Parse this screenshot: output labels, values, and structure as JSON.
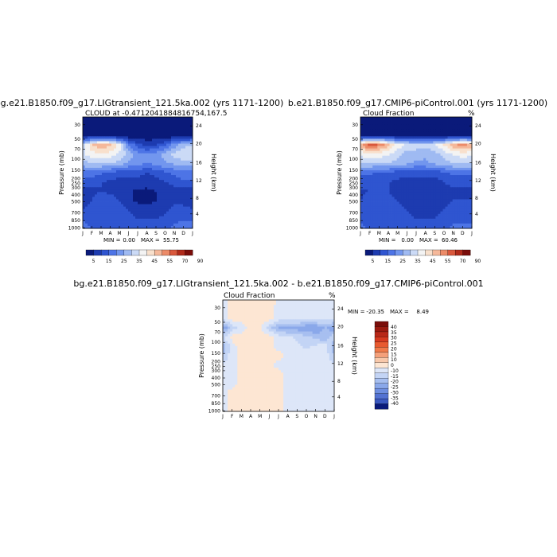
{
  "chart_data": [
    {
      "type": "heatmap",
      "title": "bg.e21.B1850.f09_g17.LIGtransient_121.5ka.002 (yrs 1171-1200)",
      "subtitle": "CLOUD at -0.4712041884816754,167.5",
      "xlabel": "",
      "ylabel": "Pressure (mb)",
      "ylabel_right": "Height (km)",
      "x_ticks": [
        "J",
        "F",
        "M",
        "A",
        "M",
        "J",
        "J",
        "A",
        "S",
        "O",
        "N",
        "D",
        "J"
      ],
      "y_ticks": [
        "30",
        "50",
        "70",
        "100",
        "150",
        "200",
        "250",
        "300",
        "400",
        "500",
        "700",
        "850",
        "1000"
      ],
      "y_ticks_right": [
        "24",
        "20",
        "16",
        "12",
        "8",
        "4"
      ],
      "stats": {
        "min_label": "MIN =",
        "min": "0.00",
        "max_label": "MAX =",
        "max": "55.75"
      },
      "colorbar": {
        "orientation": "horizontal",
        "labels": [
          "5",
          "15",
          "25",
          "35",
          "45",
          "55",
          "70",
          "90"
        ],
        "colors": [
          "#0a1a7a",
          "#1d3bb0",
          "#2f55d0",
          "#4d74e6",
          "#7296ee",
          "#9fbaf2",
          "#cbdaf6",
          "#f3f3f3",
          "#f8e0cc",
          "#f5b89a",
          "#ec8b68",
          "#d9583c",
          "#b02a1a",
          "#7a0d0a"
        ]
      },
      "field": [
        [
          0,
          0,
          0,
          0,
          0,
          0,
          0,
          0,
          0,
          0,
          0,
          0,
          0
        ],
        [
          0,
          0,
          0,
          0,
          0,
          0,
          0,
          0,
          0,
          0,
          0,
          0,
          0
        ],
        [
          2,
          2,
          2,
          2,
          1,
          1,
          1,
          1,
          1,
          1,
          1,
          1,
          2
        ],
        [
          30,
          44,
          50,
          46,
          38,
          20,
          12,
          8,
          10,
          14,
          22,
          28,
          30
        ],
        [
          34,
          38,
          40,
          38,
          34,
          28,
          22,
          20,
          22,
          28,
          32,
          34,
          34
        ],
        [
          28,
          30,
          30,
          30,
          28,
          24,
          22,
          20,
          22,
          24,
          26,
          28,
          28
        ],
        [
          18,
          18,
          16,
          14,
          12,
          12,
          12,
          10,
          12,
          14,
          16,
          18,
          18
        ],
        [
          14,
          12,
          10,
          9,
          8,
          8,
          8,
          7,
          8,
          10,
          12,
          14,
          14
        ],
        [
          8,
          9,
          10,
          9,
          8,
          6,
          4,
          4,
          5,
          6,
          8,
          8,
          8
        ],
        [
          8,
          10,
          14,
          12,
          10,
          6,
          4,
          4,
          5,
          6,
          8,
          8,
          8
        ],
        [
          10,
          12,
          14,
          14,
          12,
          10,
          8,
          6,
          6,
          8,
          12,
          12,
          10
        ],
        [
          14,
          12,
          12,
          12,
          12,
          12,
          10,
          10,
          10,
          12,
          14,
          14,
          14
        ],
        [
          18,
          14,
          12,
          12,
          14,
          14,
          12,
          12,
          12,
          14,
          16,
          18,
          18
        ]
      ]
    },
    {
      "type": "heatmap",
      "title": "b.e21.B1850.f09_g17.CMIP6-piControl.001 (yrs 1171-1200)",
      "subtitle": "Cloud Fraction",
      "corner_label": "%",
      "xlabel": "",
      "ylabel": "Pressure (mb)",
      "ylabel_right": "Height (km)",
      "x_ticks": [
        "J",
        "F",
        "M",
        "A",
        "M",
        "J",
        "J",
        "A",
        "S",
        "O",
        "N",
        "D",
        "J"
      ],
      "y_ticks": [
        "30",
        "50",
        "70",
        "100",
        "150",
        "200",
        "250",
        "300",
        "400",
        "500",
        "700",
        "850",
        "1000"
      ],
      "y_ticks_right": [
        "24",
        "20",
        "16",
        "12",
        "8",
        "4"
      ],
      "stats": {
        "min_label": "MIN =",
        "min": "0.00",
        "max_label": "MAX =",
        "max": "60.46"
      },
      "colorbar": {
        "orientation": "horizontal",
        "labels": [
          "5",
          "15",
          "25",
          "35",
          "45",
          "55",
          "70",
          "90"
        ],
        "colors": [
          "#0a1a7a",
          "#1d3bb0",
          "#2f55d0",
          "#4d74e6",
          "#7296ee",
          "#9fbaf2",
          "#cbdaf6",
          "#f3f3f3",
          "#f8e0cc",
          "#f5b89a",
          "#ec8b68",
          "#d9583c",
          "#b02a1a",
          "#7a0d0a"
        ]
      },
      "field": [
        [
          0,
          0,
          0,
          0,
          0,
          0,
          0,
          0,
          0,
          0,
          0,
          0,
          0
        ],
        [
          0,
          0,
          0,
          0,
          0,
          0,
          0,
          0,
          0,
          0,
          0,
          0,
          0
        ],
        [
          2,
          2,
          2,
          2,
          1,
          1,
          1,
          1,
          1,
          1,
          1,
          2,
          2
        ],
        [
          48,
          58,
          54,
          46,
          38,
          34,
          32,
          32,
          34,
          40,
          48,
          52,
          48
        ],
        [
          36,
          40,
          38,
          36,
          32,
          28,
          28,
          26,
          28,
          32,
          36,
          38,
          36
        ],
        [
          30,
          30,
          30,
          30,
          28,
          26,
          24,
          24,
          26,
          28,
          30,
          30,
          30
        ],
        [
          16,
          16,
          14,
          14,
          12,
          12,
          12,
          12,
          12,
          14,
          16,
          16,
          16
        ],
        [
          12,
          12,
          10,
          10,
          9,
          8,
          8,
          8,
          8,
          10,
          12,
          12,
          12
        ],
        [
          9,
          10,
          10,
          10,
          8,
          6,
          5,
          5,
          6,
          8,
          9,
          9,
          9
        ],
        [
          10,
          12,
          14,
          12,
          10,
          8,
          6,
          6,
          7,
          8,
          10,
          10,
          10
        ],
        [
          12,
          12,
          14,
          14,
          12,
          10,
          8,
          6,
          8,
          10,
          12,
          12,
          12
        ],
        [
          14,
          14,
          14,
          14,
          12,
          12,
          10,
          10,
          10,
          12,
          14,
          14,
          14
        ],
        [
          16,
          14,
          14,
          14,
          14,
          14,
          12,
          12,
          12,
          14,
          16,
          16,
          16
        ]
      ]
    },
    {
      "type": "heatmap",
      "title": "bg.e21.B1850.f09_g17.LIGtransient_121.5ka.002 - b.e21.B1850.f09_g17.CMIP6-piControl.001",
      "subtitle": "Cloud Fraction",
      "corner_label": "%",
      "xlabel": "",
      "ylabel": "Pressure (mb)",
      "ylabel_right": "Height (km)",
      "x_ticks": [
        "J",
        "F",
        "M",
        "A",
        "M",
        "J",
        "J",
        "A",
        "S",
        "O",
        "N",
        "D",
        "J"
      ],
      "y_ticks": [
        "30",
        "50",
        "70",
        "100",
        "150",
        "200",
        "250",
        "300",
        "400",
        "500",
        "700",
        "850",
        "1000"
      ],
      "y_ticks_right": [
        "24",
        "20",
        "16",
        "12",
        "8",
        "4"
      ],
      "stats": {
        "min_label": "MIN =",
        "min": "-20.35",
        "max_label": "MAX =",
        "max": "8.49"
      },
      "colorbar": {
        "orientation": "vertical",
        "labels": [
          "40",
          "35",
          "30",
          "25",
          "20",
          "15",
          "10",
          "0",
          "-10",
          "-15",
          "-20",
          "-25",
          "-30",
          "-35",
          "-40"
        ],
        "colors": [
          "#7a0d0a",
          "#9a1a10",
          "#b82818",
          "#d63a20",
          "#e85a30",
          "#f07a4a",
          "#f4a07a",
          "#f8c8aa",
          "#fde6d3",
          "#dde6f8",
          "#c3d4f5",
          "#a7bff0",
          "#8aa8ea",
          "#6e8ee0",
          "#5372d2",
          "#3a58c0",
          "#0a1a7a"
        ]
      },
      "field": [
        [
          0,
          0,
          2,
          4,
          4,
          4,
          -2,
          -2,
          -2,
          -2,
          -2,
          -4,
          0
        ],
        [
          -2,
          2,
          3,
          3,
          3,
          2,
          -2,
          -2,
          -2,
          -2,
          -2,
          -2,
          -2
        ],
        [
          -2,
          2,
          2,
          2,
          2,
          2,
          -2,
          -2,
          -2,
          -2,
          -2,
          -3,
          -2
        ],
        [
          -20,
          -8,
          -2,
          2,
          2,
          -8,
          -16,
          -18,
          -18,
          -20,
          -20,
          -14,
          -20
        ],
        [
          -6,
          2,
          2,
          2,
          3,
          2,
          -2,
          -4,
          -6,
          -8,
          -12,
          -14,
          -6
        ],
        [
          -14,
          -2,
          2,
          3,
          3,
          2,
          -2,
          -2,
          -4,
          -6,
          -4,
          -2,
          -14
        ],
        [
          -10,
          -2,
          2,
          2,
          2,
          2,
          2,
          -2,
          -2,
          -2,
          -2,
          -2,
          -10
        ],
        [
          -4,
          -2,
          2,
          2,
          2,
          2,
          -2,
          -2,
          -2,
          -2,
          -2,
          -2,
          -4
        ],
        [
          -2,
          -2,
          2,
          2,
          2,
          2,
          2,
          -2,
          -2,
          -2,
          -2,
          -2,
          -2
        ],
        [
          -2,
          -2,
          2,
          2,
          2,
          2,
          2,
          -2,
          -2,
          -2,
          -2,
          -2,
          -2
        ],
        [
          -2,
          2,
          2,
          2,
          2,
          2,
          2,
          -2,
          -2,
          -2,
          -2,
          -2,
          -2
        ],
        [
          -2,
          2,
          2,
          2,
          2,
          2,
          2,
          -2,
          -2,
          -2,
          -2,
          -2,
          -2
        ],
        [
          -2,
          2,
          2,
          2,
          2,
          2,
          2,
          -2,
          -2,
          -2,
          -2,
          -2,
          -2
        ]
      ]
    }
  ]
}
